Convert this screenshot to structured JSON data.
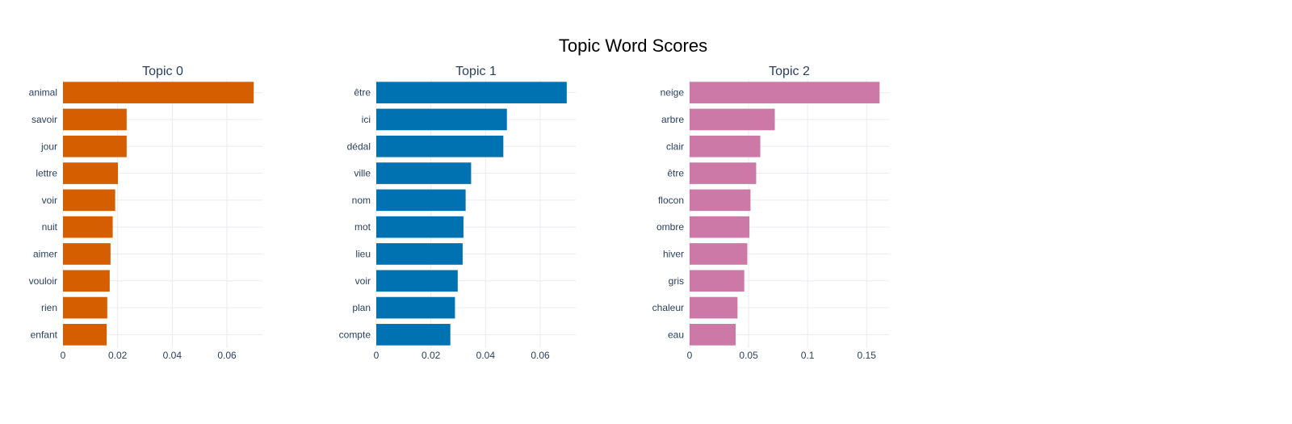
{
  "title": "Topic Word Scores",
  "chart_data": [
    {
      "type": "bar",
      "orientation": "horizontal",
      "title": "Topic 0",
      "color": "#D55E00",
      "categories": [
        "animal",
        "savoir",
        "jour",
        "lettre",
        "voir",
        "nuit",
        "aimer",
        "vouloir",
        "rien",
        "enfant"
      ],
      "values": [
        0.0698,
        0.0233,
        0.0233,
        0.0201,
        0.0191,
        0.0182,
        0.0174,
        0.0171,
        0.0162,
        0.016
      ],
      "xlim": [
        0,
        0.073
      ],
      "xticks": [
        0,
        0.02,
        0.04,
        0.06
      ],
      "xticklabels": [
        "0",
        "0.02",
        "0.04",
        "0.06"
      ],
      "grid": true
    },
    {
      "type": "bar",
      "orientation": "horizontal",
      "title": "Topic 1",
      "color": "#0072B2",
      "categories": [
        "être",
        "ici",
        "dédal",
        "ville",
        "nom",
        "mot",
        "lieu",
        "voir",
        "plan",
        "compte"
      ],
      "values": [
        0.0697,
        0.0478,
        0.0465,
        0.0347,
        0.0327,
        0.0319,
        0.0316,
        0.0298,
        0.0288,
        0.0271
      ],
      "xlim": [
        0,
        0.073
      ],
      "xticks": [
        0,
        0.02,
        0.04,
        0.06
      ],
      "xticklabels": [
        "0",
        "0.02",
        "0.04",
        "0.06"
      ],
      "grid": true
    },
    {
      "type": "bar",
      "orientation": "horizontal",
      "title": "Topic 2",
      "color": "#CC79A7",
      "categories": [
        "neige",
        "arbre",
        "clair",
        "être",
        "flocon",
        "ombre",
        "hiver",
        "gris",
        "chaleur",
        "eau"
      ],
      "values": [
        0.161,
        0.0722,
        0.0599,
        0.0564,
        0.0516,
        0.0507,
        0.0489,
        0.0463,
        0.0406,
        0.039
      ],
      "xlim": [
        0,
        0.169
      ],
      "xticks": [
        0,
        0.05,
        0.1,
        0.15
      ],
      "xticklabels": [
        "0",
        "0.05",
        "0.1",
        "0.15"
      ],
      "grid": true
    }
  ]
}
